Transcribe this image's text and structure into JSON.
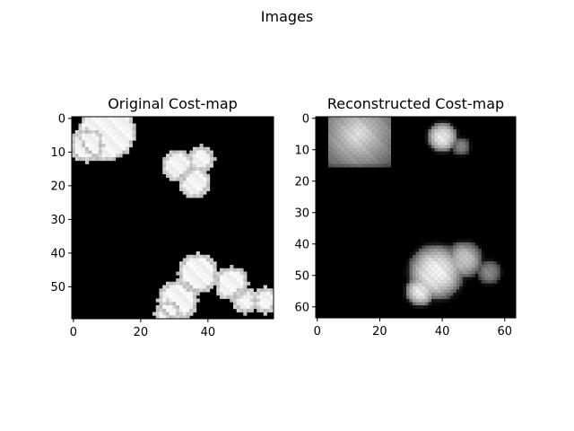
{
  "figure": {
    "suptitle": "Images"
  },
  "chart_data": [
    {
      "type": "heatmap",
      "title": "Original Cost-map",
      "colormap": "gray",
      "background": "#000000",
      "grid_size": [
        60,
        60
      ],
      "xlim": [
        0,
        59
      ],
      "ylim": [
        59,
        0
      ],
      "xticks": [
        0,
        20,
        40
      ],
      "yticks": [
        0,
        10,
        20,
        30,
        40,
        50
      ],
      "blobs": [
        {
          "cx": 10,
          "cy": 4,
          "r": 8.5
        },
        {
          "cx": 4,
          "cy": 8,
          "r": 5
        },
        {
          "cx": 31,
          "cy": 14,
          "r": 4.5
        },
        {
          "cx": 38,
          "cy": 12,
          "r": 4
        },
        {
          "cx": 36,
          "cy": 19,
          "r": 4.5
        },
        {
          "cx": 31,
          "cy": 54,
          "r": 6
        },
        {
          "cx": 37,
          "cy": 46,
          "r": 6
        },
        {
          "cx": 28,
          "cy": 58,
          "r": 4
        },
        {
          "cx": 47,
          "cy": 49,
          "r": 5
        },
        {
          "cx": 51,
          "cy": 54,
          "r": 4
        },
        {
          "cx": 57,
          "cy": 54,
          "r": 4
        }
      ]
    },
    {
      "type": "heatmap",
      "title": "Reconstructed Cost-map",
      "colormap": "gray",
      "background": "#000000",
      "grid_size": [
        64,
        64
      ],
      "xlim": [
        0,
        63
      ],
      "ylim": [
        63,
        0
      ],
      "xticks": [
        0,
        20,
        40,
        60
      ],
      "yticks": [
        0,
        10,
        20,
        30,
        40,
        50,
        60
      ],
      "blobs": [
        {
          "x0": 4,
          "x1": 23,
          "y0": 0,
          "y1": 15,
          "peak_x": 13,
          "peak_y": 5,
          "peak": 0.95,
          "min": 0.35
        },
        {
          "cx": 40,
          "cy": 6,
          "r": 5,
          "peak": 0.95
        },
        {
          "cx": 46,
          "cy": 9,
          "r": 3,
          "peak": 0.55
        },
        {
          "cx": 38,
          "cy": 49,
          "r": 9,
          "peak": 0.98
        },
        {
          "cx": 47,
          "cy": 45,
          "r": 6,
          "peak": 0.8
        },
        {
          "cx": 55,
          "cy": 49,
          "r": 4,
          "peak": 0.55
        },
        {
          "cx": 33,
          "cy": 55,
          "r": 5,
          "peak": 0.95
        }
      ]
    }
  ]
}
